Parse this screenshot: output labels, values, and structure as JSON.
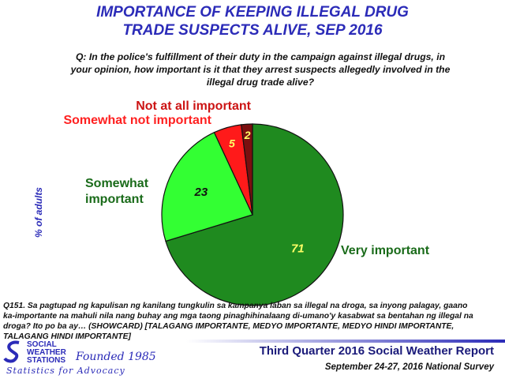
{
  "title": {
    "line1": "IMPORTANCE  OF KEEPING ILLEGAL DRUG",
    "line2": "TRADE SUSPECTS ALIVE, SEP 2016"
  },
  "question": {
    "line1": "Q: In the police's fulfillment of their duty in the campaign against illegal drugs, in",
    "line2": "your opinion, how important is it that they arrest suspects allegedly involved in the",
    "line3": "illegal drug trade alive?"
  },
  "chart_data": {
    "type": "pie",
    "ylabel": "% of adults",
    "slices": [
      {
        "label": "Very important",
        "value": 71,
        "color": "#1f8a1f"
      },
      {
        "label": "Somewhat important",
        "value": 23,
        "color": "#33ff33"
      },
      {
        "label": "Somewhat not important",
        "value": 5,
        "color": "#ff1a1a"
      },
      {
        "label": "Not at all important",
        "value": 2,
        "color": "#7a0f0f"
      }
    ],
    "label_colors": {
      "Very important": "#1a6b1a",
      "Somewhat important": "#1a6b1a",
      "Somewhat not important": "#ff2020",
      "Not at all important": "#cc1414"
    },
    "value_colors": [
      "#ffff66",
      "#111111",
      "#ffff66",
      "#ffff66"
    ]
  },
  "footnote": {
    "line1": "Q151. Sa pagtupad  ng kapulisan ng kanilang tungkulin sa kampanya laban sa illegal na droga, sa inyong palagay,  gaano",
    "line2": "ka-importante na mahuli nila nang buhay ang mga taong pinaghihinalaang di-umano'y kasabwat  sa bentahan ng illegal na",
    "line3": "droga?  Ito po ba ay… (SHOWCARD) [TALAGANG IMPORTANTE, MEDYO IMPORTANTE, MEDYO HINDI IMPORTANTE,",
    "line4": "TALAGANG HINDI IMPORTANTE]"
  },
  "logo": {
    "line1": "SOCIAL",
    "line2": "WEATHER",
    "line3": "STATIONS",
    "founded": "Founded 1985",
    "tagline": "Statistics  for  Advocacy"
  },
  "report": {
    "title": "Third Quarter 2016 Social Weather Report",
    "date": "September 24-27, 2016 National Survey"
  }
}
